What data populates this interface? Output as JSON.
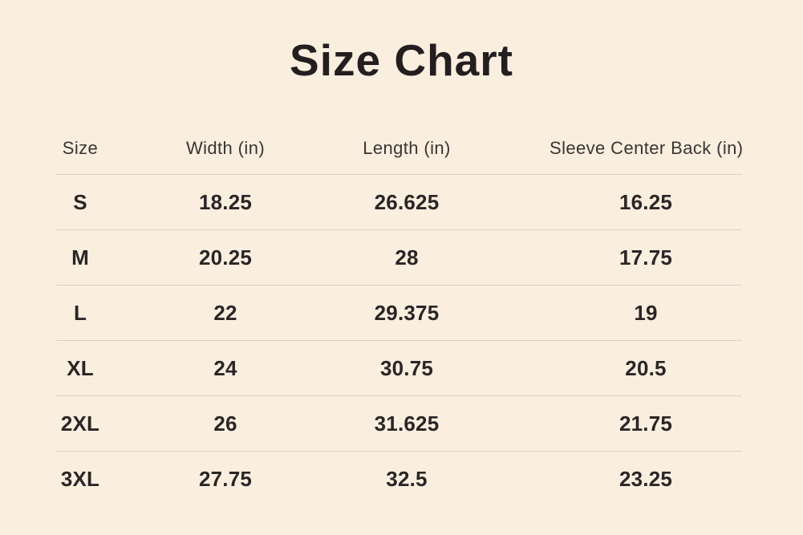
{
  "title": "Size Chart",
  "table": {
    "columns": [
      "Size",
      "Width (in)",
      "Length (in)",
      "Sleeve Center Back (in)"
    ],
    "rows": [
      {
        "size": "S",
        "width": "18.25",
        "length": "26.625",
        "sleeve": "16.25"
      },
      {
        "size": "M",
        "width": "20.25",
        "length": "28",
        "sleeve": "17.75"
      },
      {
        "size": "L",
        "width": "22",
        "length": "29.375",
        "sleeve": "19"
      },
      {
        "size": "XL",
        "width": "24",
        "length": "30.75",
        "sleeve": "20.5"
      },
      {
        "size": "2XL",
        "width": "26",
        "length": "31.625",
        "sleeve": "21.75"
      },
      {
        "size": "3XL",
        "width": "27.75",
        "length": "32.5",
        "sleeve": "23.25"
      }
    ]
  },
  "colors": {
    "background": "#FAEEDE",
    "divider": "#DBD2C6",
    "title_text": "#231E1F",
    "header_text": "#3A3533",
    "cell_text": "#2A2526"
  }
}
